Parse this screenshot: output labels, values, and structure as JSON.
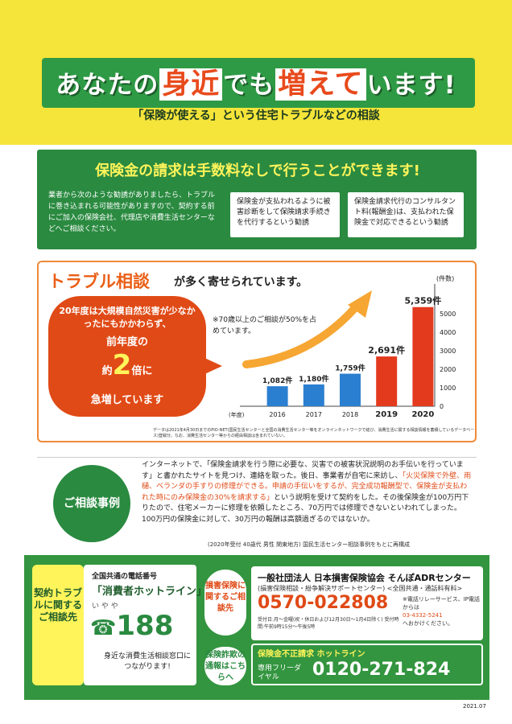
{
  "header": {
    "title_pre": "あなたの",
    "title_h1": "身近",
    "title_mid": "でも",
    "title_h2": "増えて",
    "title_post": "います!",
    "subtitle": "「保険が使える」という住宅トラブルなどの相談"
  },
  "fee": {
    "heading": "保険金の請求は手数料なしで行うことができます!",
    "body": "業者から次のような勧誘がありましたら、トラブルに巻き込まれる可能性がありますので、契約する前にご加入の保険会社、代理店や消費生活センターなどへご相談ください。",
    "case1": "保険金が支払われるように被害診断をして保険請求手続きを代行するという勧誘",
    "case2": "保険金請求代行のコンサルタント料(報酬金)は、支払われた保険金で対応できるという勧誘"
  },
  "trouble": {
    "heading": "トラブル相談",
    "heading2": "が多く寄せられています。",
    "bubble1": "20年度は大規模自然災害が少なかったにもかかわらず、",
    "bubble2": "前年度の",
    "bubble3a": "約",
    "bubble3b": "2",
    "bubble3c": "倍",
    "bubble3d": "に",
    "bubble4": "急増しています",
    "note": "※70歳以上のご相談が50%を占めています。",
    "datanote": "データは2021年4月30日までのPIO-NET(国民生活センターと全国の消費生活センター等をオンラインネットワークで結び、消費生活に関する相談情報を蓄積しているデータベース)登録分。なお、消費生活センター等からの経由相談は含まれていない。"
  },
  "chart_data": {
    "type": "bar",
    "categories": [
      "2016",
      "2017",
      "2018",
      "2019",
      "2020"
    ],
    "values": [
      1082,
      1180,
      1759,
      2691,
      5359
    ],
    "value_labels": [
      "1,082",
      "1,180",
      "1,759",
      "2,691",
      "5,359"
    ],
    "unit_suffix": "件",
    "xlabel": "(年度)",
    "ylabel": "(件数)",
    "ylim": [
      0,
      6000
    ],
    "yticks": [
      0,
      1000,
      2000,
      3000,
      4000,
      5000
    ],
    "colors": [
      "#2b7fd0",
      "#2b7fd0",
      "#2b7fd0",
      "#e33a1e",
      "#e33a1e"
    ]
  },
  "case": {
    "label": "ご相談事例",
    "text1": "インターネットで、「保険金請求を行う際に必要な、災害での被害状況説明のお手伝いを行っています」と書かれたサイトを見つけ、連絡を取った。後日、事業者が自宅に来訪し、",
    "red": "「火災保険で外壁、雨樋、ベランダの手すりの修理ができる。申請の手伝いをするが、完全成功報酬型で、保険金が支払われた時にのみ保険金の30%を請求する」",
    "text2": "という説明を受けて契約をした。その後保険金が100万円下りたので、住宅メーカーに修理を依頼したところ、70万円では修理できないといわれてしまった。100万円の保険金に対して、30万円の報酬は高額過ぎるのではないか。",
    "foot": "(2020年受付 40歳代 男性 関東地方) 国民生活センター相談事例をもとに再構成"
  },
  "contact": {
    "left": "契約トラブルに関するご相談先",
    "hotline_caption": "全国共通の電話番号",
    "hotline_name": "「消費者ホットライン」",
    "hotline_ruby": "い や や",
    "hotline_number": "188",
    "hotline_note": "身近な消費生活相談窓口につながります!",
    "damage_label": "損害保険に関するご相談先",
    "fraud_label": "保険詐欺の通報はこちらへ",
    "adr_name": "一般社団法人 日本損害保険協会 そんぽADRセンター",
    "adr_sub": "(損害保険相談・紛争解決サポートセンター) <全国共通・通話料有料>",
    "adr_phone": "0570-022808",
    "adr_hours": "受付日:月～金曜(祝・休日および12月30日～1月4日除く) 受付時間:午前9時15分～午後5時",
    "adr_relay": "※電話リレーサービス、IP電話からは",
    "adr_relay_phone": "03-4332-5241",
    "adr_relay_end": "へおかけください。",
    "fraud_title": "保険金不正請求 ホットライン",
    "fraud_sub": "専用フリーダイヤル",
    "fraud_phone": "0120-271-824"
  },
  "footer": {
    "date": "2021.07"
  }
}
